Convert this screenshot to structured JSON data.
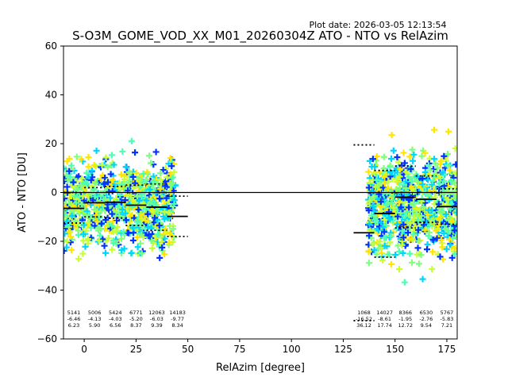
{
  "plot_date": "Plot date: 2026-03-05 12:13:54",
  "chart_data": {
    "type": "scatter",
    "title": "S-O3M_GOME_VOD_XX_M01_20260304Z ATO - NTO vs RelAzim",
    "xlabel": "RelAzim [degree]",
    "ylabel": "ATO - NTO [DU]",
    "xlim": [
      -10,
      180
    ],
    "ylim": [
      -60,
      60
    ],
    "xticks": [
      0,
      25,
      50,
      75,
      100,
      125,
      150,
      175
    ],
    "yticks": [
      -60,
      -40,
      -20,
      0,
      20,
      40,
      60
    ],
    "grid": false,
    "zero_line": 0,
    "point_colors": [
      "#7fff7f",
      "#4dffb3",
      "#00d4ff",
      "#ffe600",
      "#0033ff",
      "#c8ff36"
    ],
    "scatter_clusters": [
      {
        "x_range": [
          -10,
          44
        ],
        "y_center": -5,
        "y_spread": 15
      },
      {
        "x_range": [
          137,
          180
        ],
        "y_center": -5,
        "y_spread": 17
      }
    ],
    "bins": [
      {
        "x_range": [
          -10,
          0
        ],
        "count": "5141",
        "mean": "-6.46",
        "std": "6.23",
        "median": -6.5,
        "q_low": -12.5,
        "q_high": 0
      },
      {
        "x_range": [
          0,
          10
        ],
        "count": "5006",
        "mean": "-4.13",
        "std": "5.90",
        "median": -4.2,
        "q_low": -10,
        "q_high": 2
      },
      {
        "x_range": [
          10,
          20
        ],
        "count": "5424",
        "mean": "-4.03",
        "std": "6.56",
        "median": -4,
        "q_low": -10.5,
        "q_high": 2.5
      },
      {
        "x_range": [
          20,
          30
        ],
        "count": "6771",
        "mean": "-5.20",
        "std": "8.37",
        "median": -5.2,
        "q_low": -13.5,
        "q_high": 3
      },
      {
        "x_range": [
          30,
          40
        ],
        "count": "12063",
        "mean": "-6.03",
        "std": "9.39",
        "median": -6,
        "q_low": -15.5,
        "q_high": 3.5
      },
      {
        "x_range": [
          40,
          50
        ],
        "count": "14183",
        "mean": "-9.77",
        "std": "8.34",
        "median": -9.8,
        "q_low": -18,
        "q_high": -1.5
      },
      {
        "x_range": [
          130,
          140
        ],
        "count": "1068",
        "mean": "-16.52",
        "std": "36.12",
        "median": -16.5,
        "q_low": -52.5,
        "q_high": 19.5
      },
      {
        "x_range": [
          140,
          150
        ],
        "count": "14027",
        "mean": "-8.61",
        "std": "17.74",
        "median": -8.6,
        "q_low": -26.5,
        "q_high": 9
      },
      {
        "x_range": [
          150,
          160
        ],
        "count": "8366",
        "mean": "-1.95",
        "std": "12.72",
        "median": -1.9,
        "q_low": -14.5,
        "q_high": 10.8
      },
      {
        "x_range": [
          160,
          170
        ],
        "count": "6530",
        "mean": "-2.76",
        "std": "9.54",
        "median": -2.8,
        "q_low": -12.3,
        "q_high": 6.8
      },
      {
        "x_range": [
          170,
          180
        ],
        "count": "5767",
        "mean": "-5.83",
        "std": "7.21",
        "median": -5.8,
        "q_low": -13,
        "q_high": 1.5
      }
    ]
  }
}
